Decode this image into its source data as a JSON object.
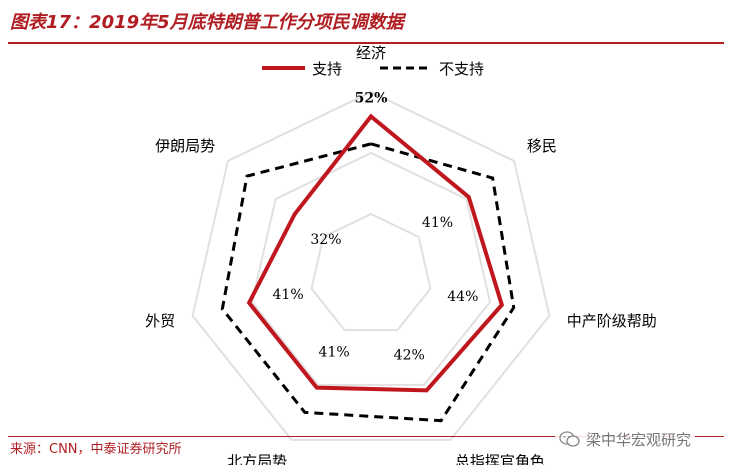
{
  "header": {
    "title": "图表17：2019年5月底特朗普工作分项民调数据"
  },
  "footer": {
    "source": "来源：CNN，中泰证券研究所",
    "watermark": "梁中华宏观研究"
  },
  "colors": {
    "accent": "#b01e23",
    "support": "#c0171f",
    "oppose": "#000000",
    "grid": "#e0e0e0",
    "highlight_label": "#c07020"
  },
  "chart_data": {
    "type": "radar",
    "title": "图表17：2019年5月底特朗普工作分项民调数据",
    "categories": [
      "经济",
      "移民",
      "中产阶级帮助",
      "总指挥官角色",
      "北方局势",
      "外贸",
      "伊朗局势"
    ],
    "series": [
      {
        "name": "支持",
        "values": [
          52,
          41,
          44,
          42,
          41,
          41,
          32
        ],
        "style": "solid"
      },
      {
        "name": "不支持",
        "values": [
          43,
          51,
          48,
          53,
          50,
          50,
          52
        ],
        "style": "dashed"
      }
    ],
    "data_labels": [
      "52%",
      "41%",
      "44%",
      "42%",
      "41%",
      "41%",
      "32%"
    ],
    "highlighted_index": 0,
    "rlim": [
      0,
      60
    ],
    "grid_levels": [
      20,
      40,
      60
    ],
    "legend": [
      "支持",
      "不支持"
    ],
    "legend_position": "top-right"
  }
}
